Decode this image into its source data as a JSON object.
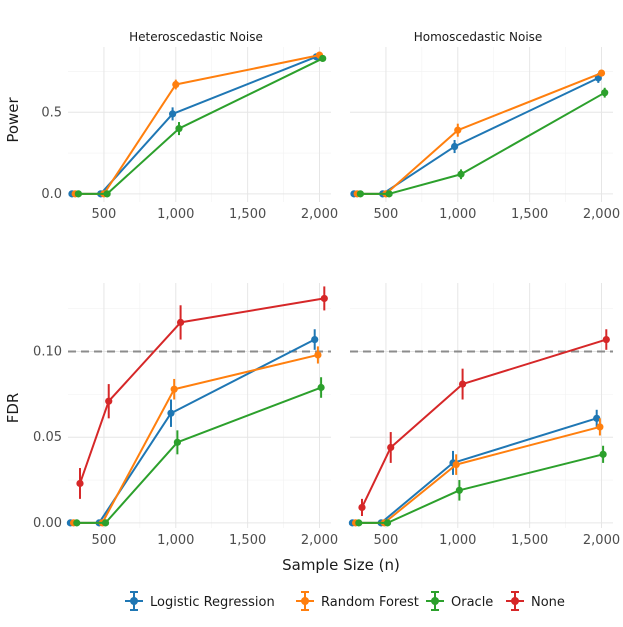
{
  "chart_data": {
    "type": "line",
    "xlabel": "Sample Size (n)",
    "x": [
      300,
      500,
      1000,
      2000
    ],
    "xlim": [
      250,
      2080
    ],
    "x_ticks": [
      500,
      1000,
      1500,
      2000
    ],
    "x_tick_labels": [
      "500",
      "1,000",
      "1,500",
      "2,000"
    ],
    "columns": [
      "Heteroscedastic Noise",
      "Homoscedastic Noise"
    ],
    "legend": [
      {
        "name": "Logistic Regression",
        "color": "#1f77b4"
      },
      {
        "name": "Random Forest",
        "color": "#ff7f0e"
      },
      {
        "name": "Oracle",
        "color": "#2ca02c"
      },
      {
        "name": "None",
        "color": "#d62728"
      }
    ],
    "legend_position": "bottom",
    "rows": [
      {
        "ylabel": "Power",
        "ylim": [
          -0.05,
          0.9
        ],
        "y_ticks": [
          0.0,
          0.5
        ],
        "y_tick_labels": [
          "0.0",
          "0.5"
        ],
        "reference_line": null,
        "panels": [
          {
            "title": "Heteroscedastic Noise",
            "series": [
              {
                "name": "Logistic Regression",
                "values": [
                  0.0,
                  0.0,
                  0.49,
                  0.84
                ],
                "errors": [
                  0.0,
                  0.0,
                  0.04,
                  0.015
                ]
              },
              {
                "name": "Random Forest",
                "values": [
                  0.0,
                  0.0,
                  0.67,
                  0.85
                ],
                "errors": [
                  0.0,
                  0.0,
                  0.03,
                  0.015
                ]
              },
              {
                "name": "Oracle",
                "values": [
                  0.0,
                  0.0,
                  0.4,
                  0.83
                ],
                "errors": [
                  0.0,
                  0.0,
                  0.04,
                  0.015
                ]
              }
            ]
          },
          {
            "title": "Homoscedastic Noise",
            "series": [
              {
                "name": "Logistic Regression",
                "values": [
                  0.0,
                  0.0,
                  0.29,
                  0.71
                ],
                "errors": [
                  0.0,
                  0.0,
                  0.04,
                  0.03
                ]
              },
              {
                "name": "Random Forest",
                "values": [
                  0.0,
                  0.0,
                  0.39,
                  0.74
                ],
                "errors": [
                  0.0,
                  0.0,
                  0.04,
                  0.02
                ]
              },
              {
                "name": "Oracle",
                "values": [
                  0.0,
                  0.0,
                  0.12,
                  0.62
                ],
                "errors": [
                  0.0,
                  0.0,
                  0.03,
                  0.03
                ]
              }
            ]
          }
        ]
      },
      {
        "ylabel": "FDR",
        "ylim": [
          -0.003,
          0.14
        ],
        "y_ticks": [
          0.0,
          0.05,
          0.1
        ],
        "y_tick_labels": [
          "0.00",
          "0.05",
          "0.10"
        ],
        "reference_line": 0.1,
        "panels": [
          {
            "title": "",
            "series": [
              {
                "name": "Logistic Regression",
                "values": [
                  0.0,
                  0.0,
                  0.064,
                  0.107
                ],
                "errors": [
                  0.0,
                  0.0,
                  0.008,
                  0.006
                ]
              },
              {
                "name": "Random Forest",
                "values": [
                  0.0,
                  0.0,
                  0.078,
                  0.098
                ],
                "errors": [
                  0.0,
                  0.0,
                  0.006,
                  0.005
                ]
              },
              {
                "name": "Oracle",
                "values": [
                  0.0,
                  0.0,
                  0.047,
                  0.079
                ],
                "errors": [
                  0.0,
                  0.0,
                  0.007,
                  0.006
                ]
              },
              {
                "name": "None",
                "values": [
                  0.023,
                  0.071,
                  0.117,
                  0.131
                ],
                "errors": [
                  0.009,
                  0.01,
                  0.01,
                  0.007
                ]
              }
            ]
          },
          {
            "title": "",
            "series": [
              {
                "name": "Logistic Regression",
                "values": [
                  0.0,
                  0.0,
                  0.035,
                  0.061
                ],
                "errors": [
                  0.0,
                  0.0,
                  0.007,
                  0.005
                ]
              },
              {
                "name": "Random Forest",
                "values": [
                  0.0,
                  0.0,
                  0.034,
                  0.056
                ],
                "errors": [
                  0.0,
                  0.0,
                  0.006,
                  0.005
                ]
              },
              {
                "name": "Oracle",
                "values": [
                  0.0,
                  0.0,
                  0.019,
                  0.04
                ],
                "errors": [
                  0.0,
                  0.0,
                  0.006,
                  0.005
                ]
              },
              {
                "name": "None",
                "values": [
                  0.009,
                  0.044,
                  0.081,
                  0.107
                ],
                "errors": [
                  0.005,
                  0.009,
                  0.009,
                  0.006
                ]
              }
            ]
          }
        ]
      }
    ]
  }
}
